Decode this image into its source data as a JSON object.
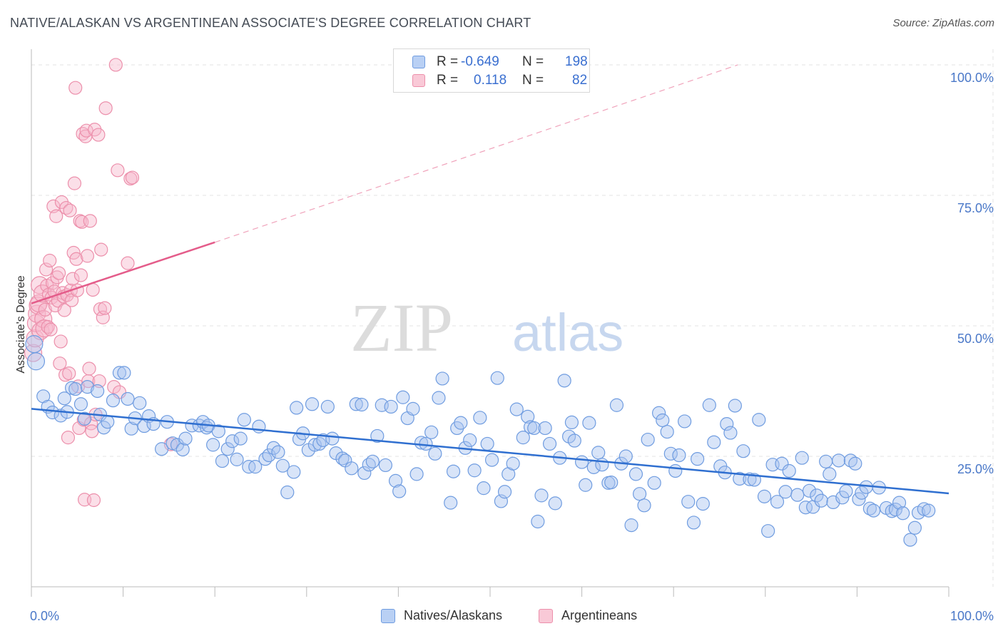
{
  "header": {
    "title": "NATIVE/ALASKAN VS ARGENTINEAN ASSOCIATE'S DEGREE CORRELATION CHART",
    "source": "Source: ZipAtlas.com"
  },
  "watermark": {
    "zip": "ZIP",
    "atlas": "atlas"
  },
  "legend": {
    "r_label": "R =",
    "n_label": "N =",
    "rows": [
      {
        "r": "-0.649",
        "n": "198"
      },
      {
        "r": "0.118",
        "n": "82"
      }
    ]
  },
  "chart_data": {
    "type": "scatter",
    "title": "NATIVE/ALASKAN VS ARGENTINEAN ASSOCIATE'S DEGREE CORRELATION CHART",
    "xlabel": "",
    "ylabel": "Associate's Degree",
    "xlim": [
      0,
      100
    ],
    "ylim": [
      0,
      103
    ],
    "x_tick_labels": [
      "0.0%",
      "100.0%"
    ],
    "y_ticks": [
      25,
      50,
      75,
      100
    ],
    "y_tick_labels": [
      "25.0%",
      "50.0%",
      "75.0%",
      "100.0%"
    ],
    "grid": true,
    "legend_position": "top-center",
    "colors": {
      "natives_fill": "#a9c4f0",
      "natives_stroke": "#6f9ce0",
      "natives_line": "#2f6fd0",
      "argentineans_fill": "#f7b8cb",
      "argentineans_stroke": "#ec8fab",
      "argentineans_line": "#e45c8a"
    },
    "series": [
      {
        "name": "Natives/Alaskans",
        "trend": {
          "x": [
            0,
            100
          ],
          "y": [
            34.1,
            17.9
          ]
        },
        "points": [
          [
            0.3,
            46.5
          ],
          [
            0.5,
            43.2
          ],
          [
            1.3,
            36.5
          ],
          [
            1.8,
            34.5
          ],
          [
            2.3,
            33.4
          ],
          [
            3.2,
            32.8
          ],
          [
            3.6,
            36.1
          ],
          [
            3.9,
            33.5
          ],
          [
            4.4,
            38.1
          ],
          [
            4.8,
            37.9
          ],
          [
            5.4,
            35.0
          ],
          [
            5.8,
            32.2
          ],
          [
            6.1,
            38.3
          ],
          [
            7.2,
            37.5
          ],
          [
            7.5,
            33.0
          ],
          [
            7.9,
            30.5
          ],
          [
            8.3,
            31.6
          ],
          [
            8.9,
            35.7
          ],
          [
            9.6,
            41.0
          ],
          [
            10.1,
            41.0
          ],
          [
            10.5,
            36.0
          ],
          [
            10.9,
            30.3
          ],
          [
            11.3,
            32.3
          ],
          [
            11.8,
            35.2
          ],
          [
            12.3,
            30.8
          ],
          [
            12.8,
            32.7
          ],
          [
            13.3,
            31.2
          ],
          [
            14.2,
            26.4
          ],
          [
            14.8,
            31.6
          ],
          [
            15.4,
            27.5
          ],
          [
            15.9,
            27.2
          ],
          [
            16.5,
            26.3
          ],
          [
            16.8,
            28.4
          ],
          [
            17.5,
            30.9
          ],
          [
            18.3,
            30.9
          ],
          [
            18.7,
            31.6
          ],
          [
            19.1,
            30.5
          ],
          [
            19.3,
            30.9
          ],
          [
            19.8,
            27.2
          ],
          [
            20.4,
            29.8
          ],
          [
            20.8,
            24.1
          ],
          [
            21.4,
            26.4
          ],
          [
            21.9,
            27.9
          ],
          [
            22.4,
            24.4
          ],
          [
            22.8,
            28.4
          ],
          [
            23.2,
            32.0
          ],
          [
            23.7,
            23.0
          ],
          [
            24.4,
            23.0
          ],
          [
            24.8,
            30.7
          ],
          [
            25.5,
            24.5
          ],
          [
            25.9,
            25.2
          ],
          [
            26.4,
            26.6
          ],
          [
            26.9,
            25.8
          ],
          [
            27.4,
            23.2
          ],
          [
            27.9,
            18.1
          ],
          [
            28.6,
            22.0
          ],
          [
            28.9,
            34.3
          ],
          [
            29.2,
            28.3
          ],
          [
            29.6,
            29.4
          ],
          [
            30.2,
            26.2
          ],
          [
            30.6,
            35.0
          ],
          [
            30.9,
            27.2
          ],
          [
            31.4,
            27.4
          ],
          [
            31.8,
            28.1
          ],
          [
            32.3,
            34.5
          ],
          [
            32.8,
            28.4
          ],
          [
            33.2,
            25.6
          ],
          [
            33.9,
            24.6
          ],
          [
            34.2,
            24.2
          ],
          [
            34.9,
            22.7
          ],
          [
            35.4,
            35.0
          ],
          [
            36.0,
            34.9
          ],
          [
            36.3,
            21.8
          ],
          [
            36.8,
            23.4
          ],
          [
            37.2,
            24.0
          ],
          [
            37.7,
            28.9
          ],
          [
            38.2,
            34.8
          ],
          [
            38.6,
            23.3
          ],
          [
            39.2,
            34.5
          ],
          [
            39.7,
            20.3
          ],
          [
            40.1,
            18.3
          ],
          [
            40.5,
            36.3
          ],
          [
            41.0,
            32.3
          ],
          [
            41.6,
            34.1
          ],
          [
            42.0,
            21.6
          ],
          [
            42.5,
            27.6
          ],
          [
            43.0,
            27.4
          ],
          [
            43.6,
            29.6
          ],
          [
            44.0,
            25.5
          ],
          [
            44.4,
            36.2
          ],
          [
            44.8,
            39.9
          ],
          [
            45.7,
            16.1
          ],
          [
            46.0,
            22.1
          ],
          [
            46.4,
            30.4
          ],
          [
            46.8,
            31.4
          ],
          [
            47.3,
            26.6
          ],
          [
            47.8,
            28.1
          ],
          [
            48.3,
            22.3
          ],
          [
            48.9,
            32.4
          ],
          [
            49.3,
            18.9
          ],
          [
            49.7,
            27.4
          ],
          [
            50.2,
            24.3
          ],
          [
            50.8,
            40.0
          ],
          [
            51.2,
            16.4
          ],
          [
            51.6,
            18.2
          ],
          [
            52.0,
            21.6
          ],
          [
            52.5,
            23.6
          ],
          [
            52.9,
            34.0
          ],
          [
            53.6,
            28.6
          ],
          [
            54.1,
            32.6
          ],
          [
            54.4,
            30.6
          ],
          [
            54.8,
            30.4
          ],
          [
            55.2,
            12.5
          ],
          [
            55.6,
            17.5
          ],
          [
            56.0,
            30.4
          ],
          [
            56.5,
            27.4
          ],
          [
            57.1,
            16.0
          ],
          [
            57.6,
            24.7
          ],
          [
            58.1,
            39.5
          ],
          [
            58.6,
            28.8
          ],
          [
            58.9,
            31.5
          ],
          [
            59.2,
            28.0
          ],
          [
            60.0,
            23.9
          ],
          [
            60.4,
            19.5
          ],
          [
            60.8,
            31.4
          ],
          [
            61.3,
            22.9
          ],
          [
            61.8,
            25.7
          ],
          [
            62.2,
            23.4
          ],
          [
            62.9,
            19.9
          ],
          [
            63.2,
            20.0
          ],
          [
            63.8,
            34.8
          ],
          [
            64.3,
            23.6
          ],
          [
            64.8,
            25.0
          ],
          [
            65.4,
            11.8
          ],
          [
            65.9,
            21.6
          ],
          [
            66.3,
            17.8
          ],
          [
            66.8,
            15.6
          ],
          [
            67.2,
            28.2
          ],
          [
            67.9,
            19.9
          ],
          [
            68.4,
            33.3
          ],
          [
            68.8,
            31.9
          ],
          [
            69.3,
            29.7
          ],
          [
            69.7,
            25.5
          ],
          [
            70.2,
            22.2
          ],
          [
            70.6,
            25.2
          ],
          [
            71.2,
            31.7
          ],
          [
            71.6,
            16.3
          ],
          [
            72.2,
            12.3
          ],
          [
            72.6,
            24.5
          ],
          [
            73.2,
            15.9
          ],
          [
            73.9,
            34.8
          ],
          [
            74.4,
            27.7
          ],
          [
            75.1,
            23.1
          ],
          [
            75.6,
            21.9
          ],
          [
            75.8,
            31.2
          ],
          [
            76.2,
            29.5
          ],
          [
            76.7,
            34.7
          ],
          [
            77.2,
            20.7
          ],
          [
            77.6,
            26.0
          ],
          [
            78.3,
            20.6
          ],
          [
            78.8,
            20.5
          ],
          [
            79.3,
            32.0
          ],
          [
            79.9,
            17.3
          ],
          [
            80.3,
            10.7
          ],
          [
            80.8,
            23.4
          ],
          [
            81.3,
            16.3
          ],
          [
            81.8,
            23.6
          ],
          [
            82.2,
            18.2
          ],
          [
            82.6,
            22.2
          ],
          [
            83.5,
            17.6
          ],
          [
            84.0,
            24.7
          ],
          [
            84.4,
            15.2
          ],
          [
            84.8,
            18.4
          ],
          [
            85.2,
            15.3
          ],
          [
            85.6,
            17.5
          ],
          [
            86.1,
            16.5
          ],
          [
            86.6,
            24.0
          ],
          [
            87.0,
            21.6
          ],
          [
            87.4,
            16.2
          ],
          [
            88.0,
            24.2
          ],
          [
            88.4,
            17.1
          ],
          [
            88.8,
            18.3
          ],
          [
            89.3,
            24.2
          ],
          [
            89.8,
            23.6
          ],
          [
            90.2,
            16.8
          ],
          [
            90.5,
            18.0
          ],
          [
            91.0,
            19.1
          ],
          [
            91.4,
            15.0
          ],
          [
            91.8,
            14.6
          ],
          [
            92.4,
            19.0
          ],
          [
            93.2,
            15.1
          ],
          [
            93.8,
            14.5
          ],
          [
            94.2,
            14.8
          ],
          [
            94.6,
            16.1
          ],
          [
            95.0,
            14.1
          ],
          [
            95.8,
            9.0
          ],
          [
            96.3,
            11.3
          ],
          [
            96.7,
            14.2
          ],
          [
            97.3,
            14.9
          ],
          [
            97.8,
            14.6
          ]
        ]
      },
      {
        "name": "Argentineans",
        "trend": {
          "x": [
            0,
            20
          ],
          "y": [
            54.3,
            66.0
          ]
        },
        "trend_extension": {
          "x": [
            20,
            77
          ],
          "y": [
            66.0,
            100
          ]
        },
        "points": [
          [
            0.2,
            44.8
          ],
          [
            0.4,
            47.6
          ],
          [
            0.5,
            50.5
          ],
          [
            0.6,
            52.3
          ],
          [
            0.7,
            53.9
          ],
          [
            0.8,
            54.3
          ],
          [
            0.9,
            57.8
          ],
          [
            1.0,
            49.0
          ],
          [
            1.2,
            56.2
          ],
          [
            1.3,
            51.3
          ],
          [
            1.4,
            49.5
          ],
          [
            1.5,
            53.1
          ],
          [
            1.6,
            60.8
          ],
          [
            1.7,
            57.7
          ],
          [
            1.8,
            49.8
          ],
          [
            1.9,
            56.0
          ],
          [
            2.0,
            62.5
          ],
          [
            2.1,
            49.3
          ],
          [
            2.2,
            55.4
          ],
          [
            2.3,
            58.2
          ],
          [
            2.4,
            72.9
          ],
          [
            2.5,
            56.6
          ],
          [
            2.6,
            53.9
          ],
          [
            2.7,
            71.0
          ],
          [
            2.8,
            59.3
          ],
          [
            2.9,
            54.8
          ],
          [
            3.0,
            60.1
          ],
          [
            3.1,
            42.8
          ],
          [
            3.2,
            47.0
          ],
          [
            3.3,
            73.7
          ],
          [
            3.4,
            56.3
          ],
          [
            3.5,
            55.6
          ],
          [
            3.6,
            53.0
          ],
          [
            3.7,
            40.6
          ],
          [
            3.8,
            72.6
          ],
          [
            3.9,
            55.9
          ],
          [
            4.0,
            28.6
          ],
          [
            4.1,
            40.9
          ],
          [
            4.2,
            72.1
          ],
          [
            4.3,
            56.8
          ],
          [
            4.4,
            54.9
          ],
          [
            4.5,
            59.0
          ],
          [
            4.6,
            64.0
          ],
          [
            4.7,
            77.3
          ],
          [
            4.8,
            95.6
          ],
          [
            4.9,
            62.8
          ],
          [
            5.0,
            56.8
          ],
          [
            5.1,
            38.4
          ],
          [
            5.2,
            30.4
          ],
          [
            5.3,
            70.1
          ],
          [
            5.4,
            59.7
          ],
          [
            5.5,
            69.9
          ],
          [
            5.6,
            86.8
          ],
          [
            5.7,
            32.0
          ],
          [
            5.8,
            16.7
          ],
          [
            5.9,
            86.3
          ],
          [
            6.0,
            87.4
          ],
          [
            6.1,
            63.4
          ],
          [
            6.2,
            39.4
          ],
          [
            6.3,
            41.8
          ],
          [
            6.4,
            70.1
          ],
          [
            6.5,
            31.3
          ],
          [
            6.6,
            29.8
          ],
          [
            6.7,
            56.9
          ],
          [
            6.8,
            16.6
          ],
          [
            6.9,
            87.6
          ],
          [
            7.0,
            33.0
          ],
          [
            7.3,
            86.6
          ],
          [
            7.4,
            39.4
          ],
          [
            7.5,
            53.2
          ],
          [
            7.6,
            64.6
          ],
          [
            7.8,
            51.6
          ],
          [
            8.0,
            53.4
          ],
          [
            8.1,
            91.7
          ],
          [
            9.0,
            38.3
          ],
          [
            9.2,
            100.0
          ],
          [
            9.4,
            79.8
          ],
          [
            9.6,
            37.3
          ],
          [
            10.5,
            62.0
          ],
          [
            10.8,
            78.2
          ],
          [
            11.0,
            78.4
          ],
          [
            15.2,
            27.3
          ]
        ]
      }
    ]
  },
  "bottom_legend": {
    "items": [
      {
        "label": "Natives/Alaskans"
      },
      {
        "label": "Argentineans"
      }
    ]
  }
}
